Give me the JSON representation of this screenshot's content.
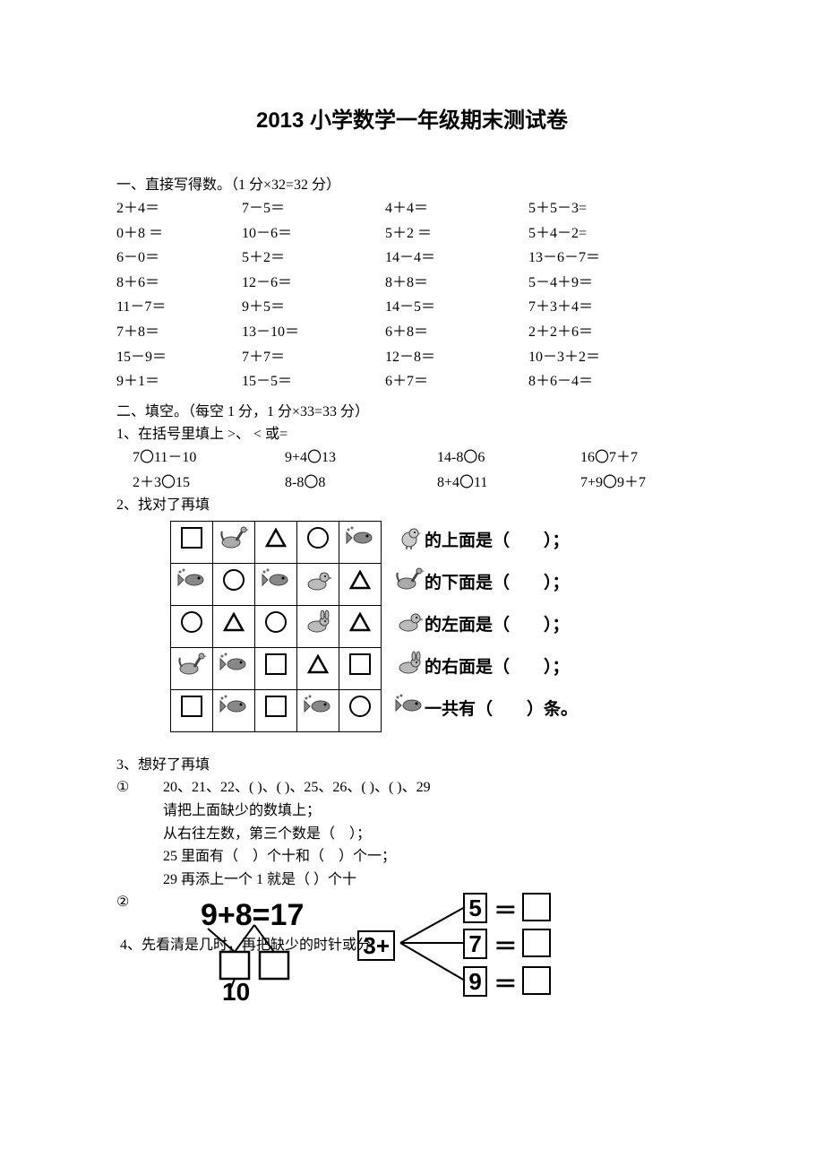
{
  "title": "2013 小学数学一年级期末测试卷",
  "section1": {
    "heading": "一、直接写得数。（1 分×32=32 分）",
    "rows": [
      [
        "2＋4＝",
        "7－5＝",
        "4＋4＝",
        "5＋5－3="
      ],
      [
        "0＋8 ＝",
        "10－6＝",
        "5＋2 ＝",
        "5＋4－2="
      ],
      [
        "6－0＝",
        "5＋2＝",
        "14－4＝",
        "13－6－7＝"
      ],
      [
        "8＋6＝",
        "12－6＝",
        "8＋8＝",
        "5－4＋9＝"
      ],
      [
        "11－7＝",
        "9＋5＝",
        "14－5＝",
        "7＋3＋4＝"
      ],
      [
        "7＋8＝",
        "13－10＝",
        "6＋8＝",
        "2＋2＋6＝"
      ],
      [
        "15－9＝",
        "7＋7＝",
        "12－8＝",
        "10－3＋2＝"
      ],
      [
        "9＋1＝",
        "15－5＝",
        "6＋7＝",
        "8＋6－4＝"
      ]
    ]
  },
  "section2": {
    "heading": "二、填空。（每空 1 分，1 分×33=33 分）",
    "q1_head": "1、在括号里填上 >、 < 或=",
    "q1_rows": [
      [
        "7〇11－10",
        "9+4〇13",
        "14-8〇6",
        "16〇7＋7"
      ],
      [
        "2＋3〇15",
        "8-8〇8",
        "8+4〇11",
        "7+9〇9＋7"
      ]
    ],
    "q2_head": "2、找对了再填",
    "q2_grid": [
      [
        "square",
        "goose",
        "triangle",
        "circle",
        "fish"
      ],
      [
        "fish",
        "circle",
        "fish",
        "duck",
        "triangle"
      ],
      [
        "circle",
        "triangle",
        "circle",
        "rabbit",
        "triangle"
      ],
      [
        "goose",
        "fish",
        "square",
        "triangle",
        "square"
      ],
      [
        "square",
        "fish",
        "square",
        "fish",
        "circle"
      ]
    ],
    "q2_statements": [
      {
        "icon": "chick",
        "text": "的上面是（　　）；"
      },
      {
        "icon": "goose",
        "text": "的下面是（　　）；"
      },
      {
        "icon": "duck",
        "text": "的左面是（　　）；"
      },
      {
        "icon": "rabbit",
        "text": "的右面是（　　）；"
      },
      {
        "icon": "fish",
        "text": "一共有（　　）条。"
      }
    ],
    "q3_head": "3、想好了再填",
    "q3_1_label": "①",
    "q3_1_lines": [
      "20、21、22、( )、( )、25、26、( )、( )、29",
      "请把上面缺少的数填上；",
      "从右往左数，第三个数是（　）；",
      "25 里面有（　）个十和（　）个一；",
      "29 再添上一个 1 就是（ ）个十"
    ],
    "q3_2_label": "②",
    "q3_2_eq": "9+8=17",
    "q3_2_base": "10",
    "q4_head": "4、先看清是几时，再把缺少的时针或分",
    "branch3": {
      "root": "3+",
      "vals": [
        "5",
        "7",
        "9"
      ]
    }
  }
}
